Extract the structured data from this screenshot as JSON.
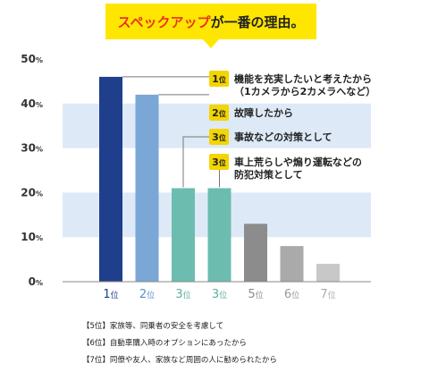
{
  "chart_data": {
    "type": "bar",
    "title": "スペックアップが一番の理由。",
    "title_highlight": "スペックアップ",
    "title_rest": "が一番の理由。",
    "categories": [
      {
        "rank": "1",
        "suffix": "位"
      },
      {
        "rank": "2",
        "suffix": "位"
      },
      {
        "rank": "3",
        "suffix": "位"
      },
      {
        "rank": "3",
        "suffix": "位"
      },
      {
        "rank": "5",
        "suffix": "位"
      },
      {
        "rank": "6",
        "suffix": "位"
      },
      {
        "rank": "7",
        "suffix": "位"
      }
    ],
    "values": [
      46,
      42,
      21,
      21,
      13,
      8,
      4
    ],
    "bar_colors": [
      "#1f3f8c",
      "#7ba7d6",
      "#6dbcb0",
      "#6dbcb0",
      "#8c8c8c",
      "#aaaaaa",
      "#c8c8c8"
    ],
    "label_colors": [
      "#1f3f8c",
      "#5b8fc9",
      "#5aafa2",
      "#5aafa2",
      "#8c8c8c",
      "#999999",
      "#aaaaaa"
    ],
    "ylim": [
      0,
      50
    ],
    "yticks": [
      {
        "num": "0",
        "unit": "%"
      },
      {
        "num": "10",
        "unit": "%"
      },
      {
        "num": "20",
        "unit": "%"
      },
      {
        "num": "30",
        "unit": "%"
      },
      {
        "num": "40",
        "unit": "%"
      },
      {
        "num": "50",
        "unit": "%"
      }
    ],
    "grid": "alternating horizontal bands",
    "annotations": [
      {
        "rank": "1",
        "suffix": "位",
        "lines": [
          "機能を充実したいと考えたから",
          "（1カメラから2カメラへなど）"
        ]
      },
      {
        "rank": "2",
        "suffix": "位",
        "lines": [
          "故障したから"
        ]
      },
      {
        "rank": "3",
        "suffix": "位",
        "lines": [
          "事故などの対策として"
        ]
      },
      {
        "rank": "3",
        "suffix": "位",
        "lines": [
          "車上荒らしや煽り運転などの",
          "防犯対策として"
        ]
      }
    ],
    "footnotes": [
      "【5位】家族等、同乗者の安全を考慮して",
      "【6位】自動車購入時のオプションにあったから",
      "【7位】同僚や友人、家族など周囲の人に勧められたから"
    ]
  },
  "colors": {
    "band": "#dde9f6",
    "title_box": "#ffe600",
    "title_accent": "#e8341c",
    "badge": "#f3d500",
    "leader": "#777777"
  }
}
